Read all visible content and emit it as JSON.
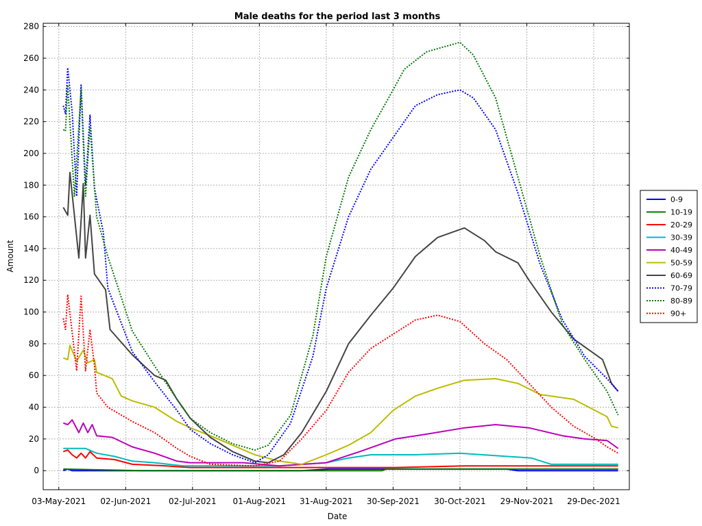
{
  "chart_data": {
    "type": "line",
    "title": "Male deaths for the period last 3 months",
    "xlabel": "Date",
    "ylabel": "Amount",
    "ylim": [
      -12,
      282
    ],
    "xlim": [
      "2021-04-26",
      "2022-01-14"
    ],
    "yticks": [
      0,
      20,
      40,
      60,
      80,
      100,
      120,
      140,
      160,
      180,
      200,
      220,
      240,
      260,
      280
    ],
    "xticks": [
      {
        "date": "2021-05-03",
        "label": "03-May-2021"
      },
      {
        "date": "2021-06-02",
        "label": "02-Jun-2021"
      },
      {
        "date": "2021-07-02",
        "label": "02-Jul-2021"
      },
      {
        "date": "2021-08-01",
        "label": "01-Aug-2021"
      },
      {
        "date": "2021-08-31",
        "label": "31-Aug-2021"
      },
      {
        "date": "2021-09-30",
        "label": "30-Sep-2021"
      },
      {
        "date": "2021-10-30",
        "label": "30-Oct-2021"
      },
      {
        "date": "2021-11-29",
        "label": "29-Nov-2021"
      },
      {
        "date": "2021-12-29",
        "label": "29-Dec-2021"
      }
    ],
    "grid": true,
    "legend_position": "right",
    "series": [
      {
        "name": "0-9",
        "color": "#0000ff",
        "dash": "solid",
        "points": [
          [
            "2021-05-05",
            0
          ],
          [
            "2021-05-07",
            1
          ],
          [
            "2021-05-09",
            0
          ],
          [
            "2021-05-15",
            0
          ],
          [
            "2021-06-01",
            0
          ],
          [
            "2021-07-10",
            0
          ],
          [
            "2021-08-20",
            0
          ],
          [
            "2021-09-01",
            1
          ],
          [
            "2021-10-15",
            1
          ],
          [
            "2021-11-20",
            1
          ],
          [
            "2021-11-25",
            0
          ],
          [
            "2022-01-09",
            0
          ]
        ]
      },
      {
        "name": "10-19",
        "color": "#007700",
        "dash": "solid",
        "points": [
          [
            "2021-05-05",
            1
          ],
          [
            "2021-06-10",
            0
          ],
          [
            "2021-08-01",
            0
          ],
          [
            "2021-09-25",
            0
          ],
          [
            "2021-09-27",
            1
          ],
          [
            "2021-11-25",
            1
          ],
          [
            "2022-01-09",
            1
          ]
        ]
      },
      {
        "name": "20-29",
        "color": "#ff0000",
        "dash": "solid",
        "points": [
          [
            "2021-05-05",
            12
          ],
          [
            "2021-05-07",
            13
          ],
          [
            "2021-05-09",
            10
          ],
          [
            "2021-05-11",
            8
          ],
          [
            "2021-05-13",
            11
          ],
          [
            "2021-05-15",
            8
          ],
          [
            "2021-05-17",
            12
          ],
          [
            "2021-05-20",
            8
          ],
          [
            "2021-05-28",
            7
          ],
          [
            "2021-06-05",
            4
          ],
          [
            "2021-06-20",
            3
          ],
          [
            "2021-07-01",
            2
          ],
          [
            "2021-08-01",
            2
          ],
          [
            "2021-09-01",
            2
          ],
          [
            "2021-10-01",
            2
          ],
          [
            "2021-11-01",
            3
          ],
          [
            "2021-12-01",
            3
          ],
          [
            "2022-01-09",
            3
          ]
        ]
      },
      {
        "name": "30-39",
        "color": "#00bbbb",
        "dash": "solid",
        "points": [
          [
            "2021-05-05",
            14
          ],
          [
            "2021-05-10",
            14
          ],
          [
            "2021-05-15",
            14
          ],
          [
            "2021-05-20",
            11
          ],
          [
            "2021-05-28",
            9
          ],
          [
            "2021-06-05",
            6
          ],
          [
            "2021-06-15",
            5
          ],
          [
            "2021-06-28",
            3
          ],
          [
            "2021-07-20",
            3
          ],
          [
            "2021-08-10",
            3
          ],
          [
            "2021-08-31",
            5
          ],
          [
            "2021-09-10",
            8
          ],
          [
            "2021-09-20",
            10
          ],
          [
            "2021-10-10",
            10
          ],
          [
            "2021-10-30",
            11
          ],
          [
            "2021-11-20",
            9
          ],
          [
            "2021-12-01",
            8
          ],
          [
            "2021-12-10",
            4
          ],
          [
            "2022-01-09",
            4
          ]
        ]
      },
      {
        "name": "40-49",
        "color": "#bb00bb",
        "dash": "solid",
        "points": [
          [
            "2021-05-05",
            30
          ],
          [
            "2021-05-07",
            29
          ],
          [
            "2021-05-09",
            32
          ],
          [
            "2021-05-12",
            24
          ],
          [
            "2021-05-14",
            30
          ],
          [
            "2021-05-16",
            24
          ],
          [
            "2021-05-18",
            29
          ],
          [
            "2021-05-20",
            22
          ],
          [
            "2021-05-27",
            21
          ],
          [
            "2021-06-05",
            15
          ],
          [
            "2021-06-15",
            11
          ],
          [
            "2021-06-25",
            6
          ],
          [
            "2021-07-01",
            5
          ],
          [
            "2021-07-25",
            5
          ],
          [
            "2021-08-10",
            3
          ],
          [
            "2021-08-31",
            5
          ],
          [
            "2021-09-15",
            12
          ],
          [
            "2021-10-01",
            20
          ],
          [
            "2021-10-15",
            23
          ],
          [
            "2021-11-01",
            27
          ],
          [
            "2021-11-15",
            29
          ],
          [
            "2021-11-30",
            27
          ],
          [
            "2021-12-15",
            22
          ],
          [
            "2021-12-25",
            20
          ],
          [
            "2022-01-04",
            19
          ],
          [
            "2022-01-09",
            14
          ]
        ]
      },
      {
        "name": "50-59",
        "color": "#bbbb00",
        "dash": "solid",
        "points": [
          [
            "2021-05-05",
            71
          ],
          [
            "2021-05-07",
            70
          ],
          [
            "2021-05-08",
            79
          ],
          [
            "2021-05-11",
            69
          ],
          [
            "2021-05-14",
            76
          ],
          [
            "2021-05-16",
            68
          ],
          [
            "2021-05-19",
            70
          ],
          [
            "2021-05-20",
            62
          ],
          [
            "2021-05-27",
            58
          ],
          [
            "2021-05-31",
            47
          ],
          [
            "2021-06-05",
            44
          ],
          [
            "2021-06-15",
            40
          ],
          [
            "2021-06-25",
            31
          ],
          [
            "2021-07-01",
            27
          ],
          [
            "2021-07-10",
            22
          ],
          [
            "2021-07-20",
            16
          ],
          [
            "2021-07-30",
            10
          ],
          [
            "2021-08-10",
            6
          ],
          [
            "2021-08-20",
            4
          ],
          [
            "2021-08-31",
            10
          ],
          [
            "2021-09-10",
            16
          ],
          [
            "2021-09-20",
            24
          ],
          [
            "2021-09-30",
            38
          ],
          [
            "2021-10-10",
            47
          ],
          [
            "2021-10-20",
            52
          ],
          [
            "2021-11-01",
            57
          ],
          [
            "2021-11-15",
            58
          ],
          [
            "2021-11-25",
            55
          ],
          [
            "2021-12-05",
            48
          ],
          [
            "2021-12-20",
            45
          ],
          [
            "2022-01-04",
            34
          ],
          [
            "2022-01-06",
            28
          ],
          [
            "2022-01-09",
            27
          ]
        ]
      },
      {
        "name": "60-69",
        "color": "#444444",
        "dash": "solid",
        "points": [
          [
            "2021-05-05",
            166
          ],
          [
            "2021-05-07",
            161
          ],
          [
            "2021-05-08",
            188
          ],
          [
            "2021-05-12",
            134
          ],
          [
            "2021-05-14",
            181
          ],
          [
            "2021-05-15",
            134
          ],
          [
            "2021-05-17",
            161
          ],
          [
            "2021-05-19",
            124
          ],
          [
            "2021-05-24",
            114
          ],
          [
            "2021-05-26",
            89
          ],
          [
            "2021-06-05",
            73
          ],
          [
            "2021-06-15",
            60
          ],
          [
            "2021-06-20",
            57
          ],
          [
            "2021-06-25",
            45
          ],
          [
            "2021-07-01",
            33
          ],
          [
            "2021-07-10",
            21
          ],
          [
            "2021-07-20",
            12
          ],
          [
            "2021-07-30",
            6
          ],
          [
            "2021-08-05",
            5
          ],
          [
            "2021-08-12",
            10
          ],
          [
            "2021-08-20",
            24
          ],
          [
            "2021-08-31",
            50
          ],
          [
            "2021-09-10",
            80
          ],
          [
            "2021-09-20",
            98
          ],
          [
            "2021-09-30",
            115
          ],
          [
            "2021-10-10",
            135
          ],
          [
            "2021-10-20",
            147
          ],
          [
            "2021-11-01",
            153
          ],
          [
            "2021-11-10",
            145
          ],
          [
            "2021-11-15",
            138
          ],
          [
            "2021-11-25",
            131
          ],
          [
            "2021-11-30",
            120
          ],
          [
            "2021-12-10",
            100
          ],
          [
            "2021-12-20",
            83
          ],
          [
            "2021-12-25",
            78
          ],
          [
            "2022-01-02",
            70
          ],
          [
            "2022-01-06",
            55
          ],
          [
            "2022-01-09",
            50
          ]
        ]
      },
      {
        "name": "70-79",
        "color": "#0000ff",
        "dash": "dot",
        "points": [
          [
            "2021-05-05",
            230
          ],
          [
            "2021-05-06",
            225
          ],
          [
            "2021-05-07",
            254
          ],
          [
            "2021-05-09",
            226
          ],
          [
            "2021-05-11",
            173
          ],
          [
            "2021-05-13",
            243
          ],
          [
            "2021-05-15",
            180
          ],
          [
            "2021-05-17",
            224
          ],
          [
            "2021-05-19",
            178
          ],
          [
            "2021-05-23",
            150
          ],
          [
            "2021-05-25",
            115
          ],
          [
            "2021-06-05",
            75
          ],
          [
            "2021-06-15",
            56
          ],
          [
            "2021-06-25",
            38
          ],
          [
            "2021-07-01",
            26
          ],
          [
            "2021-07-10",
            17
          ],
          [
            "2021-07-20",
            10
          ],
          [
            "2021-07-30",
            5
          ],
          [
            "2021-08-05",
            10
          ],
          [
            "2021-08-15",
            30
          ],
          [
            "2021-08-25",
            72
          ],
          [
            "2021-08-31",
            115
          ],
          [
            "2021-09-10",
            160
          ],
          [
            "2021-09-20",
            190
          ],
          [
            "2021-09-30",
            210
          ],
          [
            "2021-10-10",
            230
          ],
          [
            "2021-10-20",
            237
          ],
          [
            "2021-10-30",
            240
          ],
          [
            "2021-11-05",
            235
          ],
          [
            "2021-11-15",
            215
          ],
          [
            "2021-11-25",
            175
          ],
          [
            "2021-12-05",
            130
          ],
          [
            "2021-12-15",
            95
          ],
          [
            "2021-12-25",
            72
          ],
          [
            "2022-01-04",
            58
          ],
          [
            "2022-01-09",
            50
          ]
        ]
      },
      {
        "name": "80-89",
        "color": "#007700",
        "dash": "dot",
        "points": [
          [
            "2021-05-05",
            215
          ],
          [
            "2021-05-06",
            214
          ],
          [
            "2021-05-07",
            243
          ],
          [
            "2021-05-10",
            173
          ],
          [
            "2021-05-13",
            240
          ],
          [
            "2021-05-15",
            173
          ],
          [
            "2021-05-17",
            217
          ],
          [
            "2021-05-20",
            160
          ],
          [
            "2021-05-25",
            135
          ],
          [
            "2021-06-05",
            88
          ],
          [
            "2021-06-15",
            66
          ],
          [
            "2021-06-25",
            45
          ],
          [
            "2021-07-01",
            33
          ],
          [
            "2021-07-10",
            24
          ],
          [
            "2021-07-20",
            17
          ],
          [
            "2021-07-30",
            13
          ],
          [
            "2021-08-05",
            16
          ],
          [
            "2021-08-15",
            35
          ],
          [
            "2021-08-25",
            85
          ],
          [
            "2021-08-31",
            135
          ],
          [
            "2021-09-10",
            185
          ],
          [
            "2021-09-20",
            215
          ],
          [
            "2021-09-30",
            240
          ],
          [
            "2021-10-05",
            253
          ],
          [
            "2021-10-15",
            264
          ],
          [
            "2021-10-25",
            268
          ],
          [
            "2021-10-30",
            270
          ],
          [
            "2021-11-05",
            262
          ],
          [
            "2021-11-15",
            235
          ],
          [
            "2021-11-25",
            185
          ],
          [
            "2021-12-05",
            135
          ],
          [
            "2021-12-15",
            92
          ],
          [
            "2021-12-25",
            70
          ],
          [
            "2022-01-04",
            50
          ],
          [
            "2022-01-09",
            35
          ]
        ]
      },
      {
        "name": "90+",
        "color": "#ff0000",
        "dash": "dot",
        "points": [
          [
            "2021-05-05",
            96
          ],
          [
            "2021-05-06",
            89
          ],
          [
            "2021-05-07",
            111
          ],
          [
            "2021-05-11",
            63
          ],
          [
            "2021-05-13",
            110
          ],
          [
            "2021-05-15",
            63
          ],
          [
            "2021-05-17",
            89
          ],
          [
            "2021-05-19",
            66
          ],
          [
            "2021-05-20",
            49
          ],
          [
            "2021-05-25",
            40
          ],
          [
            "2021-06-05",
            31
          ],
          [
            "2021-06-15",
            24
          ],
          [
            "2021-06-25",
            14
          ],
          [
            "2021-07-01",
            9
          ],
          [
            "2021-07-10",
            4
          ],
          [
            "2021-07-30",
            3
          ],
          [
            "2021-08-10",
            6
          ],
          [
            "2021-08-20",
            20
          ],
          [
            "2021-08-31",
            38
          ],
          [
            "2021-09-10",
            62
          ],
          [
            "2021-09-20",
            77
          ],
          [
            "2021-09-30",
            86
          ],
          [
            "2021-10-10",
            95
          ],
          [
            "2021-10-20",
            98
          ],
          [
            "2021-10-30",
            94
          ],
          [
            "2021-11-10",
            80
          ],
          [
            "2021-11-20",
            70
          ],
          [
            "2021-11-30",
            55
          ],
          [
            "2021-12-10",
            40
          ],
          [
            "2021-12-20",
            28
          ],
          [
            "2021-12-30",
            20
          ],
          [
            "2022-01-04",
            15
          ],
          [
            "2022-01-09",
            11
          ]
        ]
      }
    ]
  }
}
